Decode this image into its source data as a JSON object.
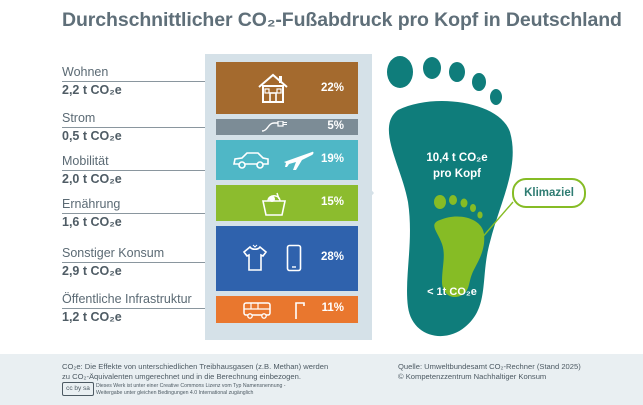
{
  "title": "Durchschnittlicher CO₂-Fußabdruck pro Kopf in Deutschland",
  "categories": [
    {
      "name": "Wohnen",
      "value": "2,2 t CO₂e",
      "percent": "22%",
      "color": "#a46a2e"
    },
    {
      "name": "Strom",
      "value": "0,5 t CO₂e",
      "percent": "5%",
      "color": "#7c8c96"
    },
    {
      "name": "Mobilität",
      "value": "2,0 t CO₂e",
      "percent": "19%",
      "color": "#4fb7c6"
    },
    {
      "name": "Ernährung",
      "value": "1,6 t CO₂e",
      "percent": "15%",
      "color": "#8cbc2e"
    },
    {
      "name": "Sonstiger Konsum",
      "value": "2,9 t CO₂e",
      "percent": "28%",
      "color": "#2f62ad"
    },
    {
      "name": "Öffentliche Infrastruktur",
      "value": "1,2 t CO₂e",
      "percent": "11%",
      "color": "#e9772e"
    }
  ],
  "footprint": {
    "total_line1": "10,4 t CO₂e",
    "total_line2": "pro Kopf",
    "goal_label": "Klimaziel",
    "goal_value": "< 1t CO₂e",
    "main_color": "#0f7d7b",
    "goal_color": "#86bc25"
  },
  "footer": {
    "note_line1": "CO₂e: Die Effekte von unterschiedlichen Treibhausgasen (z.B. Methan) werden",
    "note_line2": "zu CO₂-Äquivalenten umgerechnet und in die Berechnung einbezogen.",
    "license_line1": "Dieses Werk ist unter einer Creative Commons Lizenz vom Typ Namensnennung -",
    "license_line2": "Weitergabe unter gleichen Bedingungen 4.0 International zugänglich",
    "source": "Quelle: Umweltbundesamt CO₂-Rechner (Stand 2025)",
    "copyright": "© Kompetenzzentrum Nachhaltiger Konsum",
    "cc_badge": "cc by sa"
  },
  "icons": [
    "house-icon",
    "plug-icon",
    "car-icon",
    "airplane-icon",
    "basket-icon",
    "shirt-icon",
    "smartphone-icon",
    "bus-icon",
    "lamp-icon",
    "footprint-icon"
  ]
}
